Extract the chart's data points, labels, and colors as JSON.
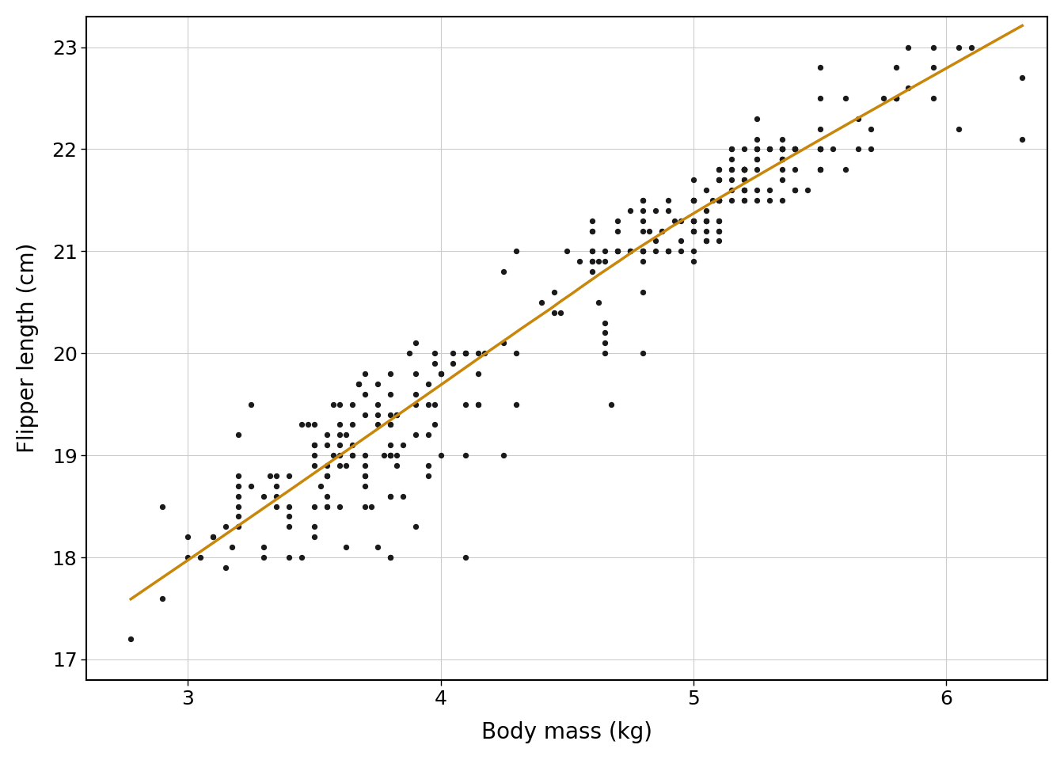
{
  "xlabel": "Body mass (kg)",
  "ylabel": "Flipper length (cm)",
  "xlim": [
    2.6,
    6.4
  ],
  "ylim": [
    16.8,
    23.3
  ],
  "xticks": [
    3,
    4,
    5,
    6
  ],
  "yticks": [
    17,
    18,
    19,
    20,
    21,
    22,
    23
  ],
  "scatter_color": "#1a1a1a",
  "scatter_size": 18,
  "curve_color": "#C8860A",
  "curve_linewidth": 2.5,
  "background_color": "#ffffff",
  "grid_color": "#cccccc",
  "axis_label_fontsize": 20,
  "tick_fontsize": 18,
  "font_family": "DejaVu Sans"
}
